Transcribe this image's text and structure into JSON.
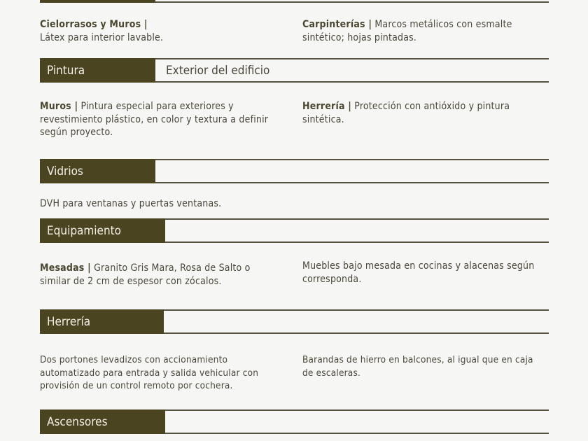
{
  "sections": [
    {
      "title": "",
      "items": [
        {
          "label": "Cielorrasos y Muros |",
          "text": "Látex para interior lavable."
        },
        {
          "label": "Carpinterías |",
          "text": "Marcos metálicos con esmalte sintético; hojas pintadas."
        }
      ]
    },
    {
      "title": "Pintura",
      "subtitle": "Exterior del edificio",
      "items": [
        {
          "label": "Muros |",
          "text": "Pintura especial para exteriores y revestimiento plástico, en color y textura a definir según proyecto."
        },
        {
          "label": "Herrería |",
          "text": "Protección con antióxido y pintura sintética."
        }
      ]
    },
    {
      "title": "Vidrios",
      "items": [
        {
          "label": "",
          "text": "DVH para ventanas y puertas ventanas."
        }
      ]
    },
    {
      "title": "Equipamiento",
      "items": [
        {
          "label": "Mesadas |",
          "text": "Granito Gris Mara, Rosa de Salto o similar de 2 cm de espesor con zócalos."
        },
        {
          "label": "",
          "text": "Muebles bajo mesada en cocinas y alacenas según corresponda."
        }
      ]
    },
    {
      "title": "Herrería",
      "items": [
        {
          "label": "",
          "text": "Dos portones levadizos con accionamiento automatizado para entrada y salida vehicular con provisión de un control remoto por cochera."
        },
        {
          "label": "",
          "text": "Barandas de hierro en balcones, al igual que en caja de escaleras."
        }
      ]
    },
    {
      "title": "Ascensores",
      "items": []
    }
  ],
  "colors": {
    "header_bar": "#4b4420",
    "rule": "#55533f",
    "text": "#4a473a"
  }
}
